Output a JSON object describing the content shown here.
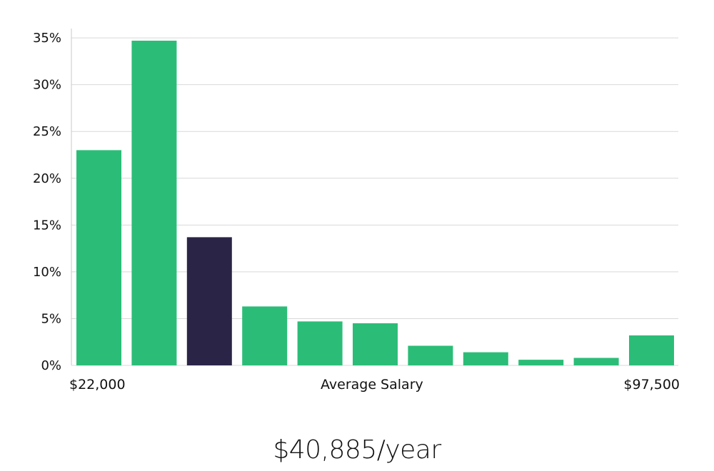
{
  "chart_data": {
    "type": "bar",
    "categories": [
      "1",
      "2",
      "3",
      "4",
      "5",
      "6",
      "7",
      "8",
      "9",
      "10",
      "11"
    ],
    "values": [
      23.0,
      34.7,
      13.7,
      6.3,
      4.7,
      4.5,
      2.1,
      1.4,
      0.6,
      0.8,
      3.2
    ],
    "highlight_index": 2,
    "ylim": [
      0,
      36
    ],
    "yticks": [
      0,
      5,
      10,
      15,
      20,
      25,
      30,
      35
    ],
    "ytick_labels": [
      "0%",
      "5%",
      "10%",
      "15%",
      "20%",
      "25%",
      "30%",
      "35%"
    ],
    "grid": true,
    "xlabel": "Average Salary",
    "x_min_label": "$22,000",
    "x_max_label": "$97,500",
    "colors": {
      "bar": "#2bbd77",
      "highlight": "#2a2547",
      "grid": "#d9d9d9"
    }
  },
  "average_salary": "$40,885/year"
}
